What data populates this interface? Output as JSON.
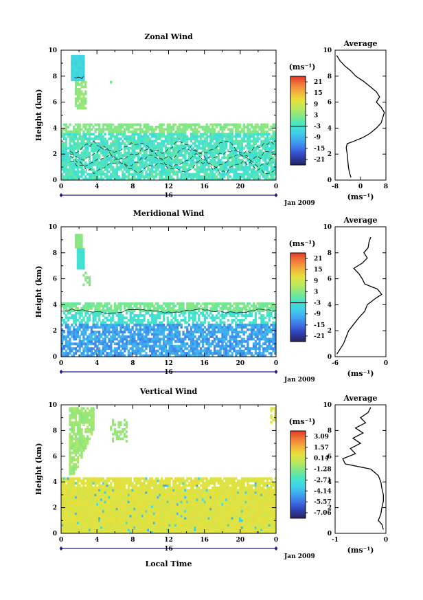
{
  "chart_data": [
    {
      "type": "heatmap",
      "title": "Zonal Wind",
      "xlabel": "",
      "ylabel": "Height (km)",
      "x_ticks": [
        "0",
        "4",
        "8",
        "12",
        "16",
        "20",
        "0"
      ],
      "y_ticks": [
        "0",
        "2",
        "4",
        "6",
        "8",
        "10"
      ],
      "xlim": [
        0,
        24
      ],
      "ylim": [
        0,
        10
      ],
      "date_marker": "16",
      "date_label": "Jan 2009",
      "colorbar": {
        "unit": "(ms⁻¹)",
        "ticks": [
          "21",
          "15",
          "9",
          "3",
          "-3",
          "-9",
          "-15",
          "-21"
        ],
        "range": [
          -24,
          24
        ]
      },
      "profile": {
        "title": "Average",
        "xlabel": "(ms⁻¹)",
        "x_ticks": [
          "-8",
          "0",
          "8"
        ],
        "xlim": [
          -8,
          8
        ],
        "heights": [
          0.2,
          0.6,
          1.0,
          1.5,
          2.0,
          2.5,
          2.8,
          3.0,
          3.3,
          3.6,
          4.0,
          4.4,
          4.8,
          5.2,
          5.6,
          6.0,
          6.4,
          6.8,
          7.2,
          7.6,
          8.0,
          8.4,
          8.8,
          9.2,
          9.6
        ],
        "values": [
          -3.0,
          -3.5,
          -3.8,
          -4.0,
          -4.2,
          -4.5,
          -4.2,
          -2.0,
          1.0,
          3.0,
          5.0,
          6.5,
          7.0,
          7.5,
          6.5,
          5.0,
          6.0,
          5.0,
          3.0,
          1.0,
          -1.5,
          -3.0,
          -5.0,
          -6.5,
          -7.5
        ]
      }
    },
    {
      "type": "heatmap",
      "title": "Meridional Wind",
      "xlabel": "",
      "ylabel": "Height (km)",
      "x_ticks": [
        "0",
        "4",
        "8",
        "12",
        "16",
        "20",
        "0"
      ],
      "y_ticks": [
        "0",
        "2",
        "4",
        "6",
        "8",
        "10"
      ],
      "xlim": [
        0,
        24
      ],
      "ylim": [
        0,
        10
      ],
      "date_marker": "16",
      "date_label": "Jan 2009",
      "colorbar": {
        "unit": "(ms⁻¹)",
        "ticks": [
          "21",
          "15",
          "9",
          "3",
          "-3",
          "-9",
          "-15",
          "-21"
        ],
        "range": [
          -24,
          24
        ]
      },
      "profile": {
        "title": "Average",
        "xlabel": "(ms⁻¹)",
        "x_ticks": [
          "-6",
          "0"
        ],
        "xlim": [
          -6,
          0
        ],
        "heights": [
          0.2,
          0.6,
          1.0,
          1.5,
          2.0,
          2.5,
          3.0,
          3.5,
          4.0,
          4.5,
          4.8,
          5.2,
          5.6,
          6.0,
          6.4,
          6.8,
          7.2,
          7.6,
          8.0,
          8.4,
          8.8,
          9.2
        ],
        "values": [
          -5.8,
          -5.4,
          -5.0,
          -4.7,
          -4.4,
          -3.8,
          -3.2,
          -2.5,
          -2.2,
          -1.2,
          -0.5,
          -1.0,
          -2.5,
          -2.8,
          -3.2,
          -3.8,
          -2.8,
          -2.2,
          -2.6,
          -2.1,
          -2.0,
          -1.8
        ]
      }
    },
    {
      "type": "heatmap",
      "title": "Vertical Wind",
      "xlabel": "Local Time",
      "ylabel": "Height (km)",
      "x_ticks": [
        "0",
        "4",
        "8",
        "12",
        "16",
        "20",
        "0"
      ],
      "y_ticks": [
        "0",
        "2",
        "4",
        "6",
        "8",
        "10"
      ],
      "xlim": [
        0,
        24
      ],
      "ylim": [
        0,
        10
      ],
      "date_marker": "16",
      "date_label": "Jan 2009",
      "colorbar": {
        "unit": "(ms⁻¹)",
        "ticks": [
          "3.09",
          "1.57",
          "0.14",
          "-1.28",
          "-2.71",
          "-4.14",
          "-5.57",
          "-7.06"
        ],
        "range": [
          -8.0,
          4.0
        ]
      },
      "profile": {
        "title": "Average",
        "xlabel": "(ms⁻¹)",
        "x_ticks": [
          "-1",
          "0"
        ],
        "xlim": [
          -1,
          0
        ],
        "heights": [
          0.3,
          0.7,
          1.0,
          1.5,
          2.0,
          2.5,
          3.0,
          3.5,
          4.0,
          4.5,
          5.0,
          5.4,
          5.8,
          6.2,
          6.6,
          7.0,
          7.4,
          7.8,
          8.2,
          8.6,
          9.0,
          9.4,
          9.8
        ],
        "values": [
          -0.05,
          -0.08,
          -0.15,
          -0.1,
          -0.08,
          -0.05,
          -0.05,
          -0.08,
          -0.1,
          -0.15,
          -0.3,
          -0.8,
          -0.85,
          -0.6,
          -0.7,
          -0.5,
          -0.65,
          -0.45,
          -0.6,
          -0.4,
          -0.5,
          -0.35,
          -0.3
        ]
      }
    }
  ]
}
